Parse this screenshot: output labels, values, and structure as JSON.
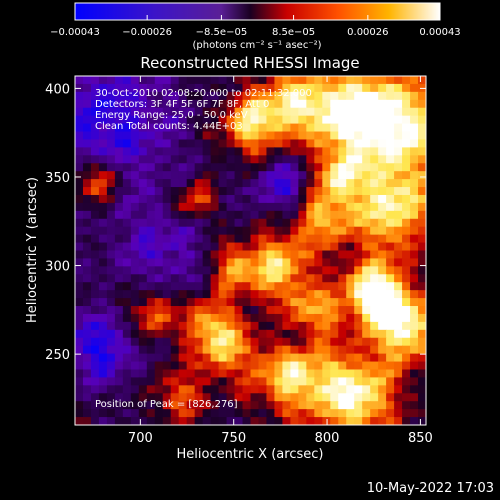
{
  "chart_data": {
    "type": "heatmap",
    "title": "Reconstructed RHESSI Image",
    "xlabel": "Heliocentric X (arcsec)",
    "ylabel": "Heliocentric Y (arcsec)",
    "xlim": [
      665,
      853
    ],
    "ylim": [
      210,
      407
    ],
    "x_ticks": [
      700,
      750,
      800,
      850
    ],
    "x_tick_labels": [
      "700",
      "750",
      "800",
      "850"
    ],
    "y_ticks": [
      250,
      300,
      350,
      400
    ],
    "y_tick_labels": [
      "250",
      "300",
      "350",
      "400"
    ],
    "colorbar": {
      "range": [
        -0.00043,
        0.00043
      ],
      "tick_values": [
        -0.00043,
        -0.00026,
        -8.5e-05,
        8.5e-05,
        0.00026,
        0.00043
      ],
      "tick_labels": [
        "−0.00043",
        "−0.00026",
        "−8.5e−05",
        "8.5e−05",
        "0.00026",
        "0.00043"
      ],
      "unit_label": "(photons cm⁻² s⁻¹ asec⁻²)",
      "colormap": [
        "#0000ff",
        "#5a00b4",
        "#1a0022",
        "#c80000",
        "#ff7800",
        "#ffe650",
        "#ffffff"
      ]
    },
    "annotations": [
      "30-Oct-2010 02:08:20.000 to 02:11:32.000",
      "Detectors: 3F 4F 5F 6F 7F 8F, Att 0",
      "Energy Range: 25.0 - 50.0 keV",
      "Clean     Total counts: 4.44E+03"
    ],
    "peak_label": "Position of Peak = [826,276]",
    "peak": [
      826,
      276
    ]
  },
  "footer": {
    "timestamp": "10-May-2022 17:03"
  }
}
